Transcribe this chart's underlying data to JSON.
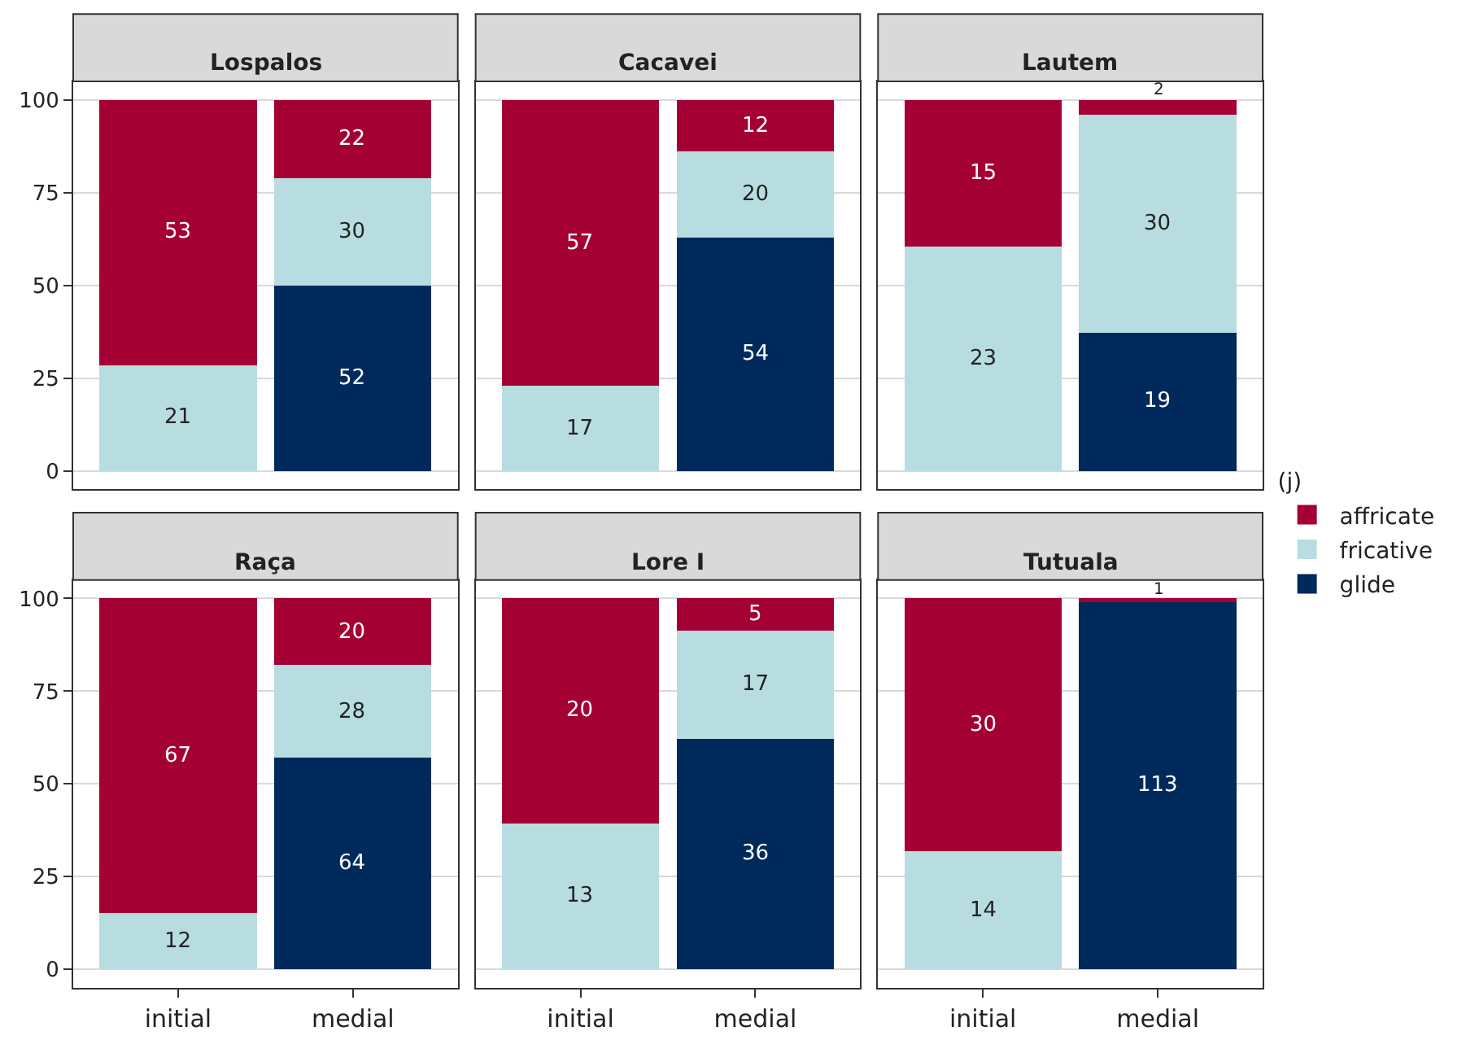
{
  "chart_data": [
    {
      "type": "bar",
      "title": "Lospalos",
      "categories": [
        "initial",
        "medial"
      ],
      "stacked": true,
      "ylim": [
        -5,
        105
      ],
      "yticks": [
        0,
        25,
        50,
        75,
        100
      ],
      "grid": "y",
      "tick_labels": "y",
      "legend": "right",
      "legend_title": "(j)",
      "series": [
        {
          "name": "glide",
          "color": "#002a5c",
          "values": [
            null,
            50.0
          ]
        },
        {
          "name": "fricative",
          "color": "#b8dde1",
          "values": [
            28.4,
            28.8
          ]
        },
        {
          "name": "affricate",
          "color": "#a50034",
          "values": [
            71.6,
            21.2
          ]
        }
      ],
      "annotations": [
        "21",
        "53",
        "52",
        "30",
        "22"
      ]
    },
    {
      "type": "bar",
      "title": "Cacavei",
      "categories": [
        "initial",
        "medial"
      ],
      "stacked": true,
      "ylim": [
        -5,
        105
      ],
      "yticks": [
        0,
        25,
        50,
        75,
        100
      ],
      "grid": "y",
      "tick_labels": false,
      "series": [
        {
          "name": "glide",
          "color": "#002a5c",
          "values": [
            null,
            62.8
          ]
        },
        {
          "name": "fricative",
          "color": "#b8dde1",
          "values": [
            23.0,
            23.3
          ]
        },
        {
          "name": "affricate",
          "color": "#a50034",
          "values": [
            77.0,
            13.9
          ]
        }
      ],
      "annotations": [
        "17",
        "57",
        "54",
        "20",
        "12"
      ]
    },
    {
      "type": "bar",
      "title": "Lautem",
      "categories": [
        "initial",
        "medial"
      ],
      "stacked": true,
      "ylim": [
        -5,
        105
      ],
      "yticks": [
        0,
        25,
        50,
        75,
        100
      ],
      "grid": "y",
      "tick_labels": false,
      "series": [
        {
          "name": "glide",
          "color": "#002a5c",
          "values": [
            null,
            37.3
          ]
        },
        {
          "name": "fricative",
          "color": "#b8dde1",
          "values": [
            60.5,
            58.8
          ]
        },
        {
          "name": "affricate",
          "color": "#a50034",
          "values": [
            39.5,
            3.9
          ]
        }
      ],
      "annotations": [
        "23",
        "15",
        "19",
        "30",
        "2"
      ]
    },
    {
      "type": "bar",
      "title": "Raça",
      "categories": [
        "initial",
        "medial"
      ],
      "stacked": true,
      "ylim": [
        -5,
        105
      ],
      "yticks": [
        0,
        25,
        50,
        75,
        100
      ],
      "grid": "y",
      "series": [
        {
          "name": "glide",
          "color": "#002a5c",
          "values": [
            null,
            57.1
          ]
        },
        {
          "name": "fricative",
          "color": "#b8dde1",
          "values": [
            15.2,
            25.0
          ]
        },
        {
          "name": "affricate",
          "color": "#a50034",
          "values": [
            84.8,
            17.9
          ]
        }
      ],
      "annotations": [
        "12",
        "67",
        "64",
        "28",
        "20"
      ]
    },
    {
      "type": "bar",
      "title": "Lore I",
      "categories": [
        "initial",
        "medial"
      ],
      "stacked": true,
      "ylim": [
        -5,
        105
      ],
      "yticks": [
        0,
        25,
        50,
        75,
        100
      ],
      "grid": "y",
      "tick_labels": "x",
      "series": [
        {
          "name": "glide",
          "color": "#002a5c",
          "values": [
            null,
            62.1
          ]
        },
        {
          "name": "fricative",
          "color": "#b8dde1",
          "values": [
            39.4,
            29.3
          ]
        },
        {
          "name": "affricate",
          "color": "#a50034",
          "values": [
            60.6,
            8.6
          ]
        }
      ],
      "annotations": [
        "13",
        "20",
        "36",
        "17",
        "5"
      ]
    },
    {
      "type": "bar",
      "title": "Tutuala",
      "categories": [
        "initial",
        "medial"
      ],
      "stacked": true,
      "ylim": [
        -5,
        105
      ],
      "yticks": [
        0,
        25,
        50,
        75,
        100
      ],
      "grid": "y",
      "tick_labels": "x",
      "series": [
        {
          "name": "glide",
          "color": "#002a5c",
          "values": [
            null,
            99.1
          ]
        },
        {
          "name": "fricative",
          "color": "#b8dde1",
          "values": [
            31.8,
            null
          ]
        },
        {
          "name": "affricate",
          "color": "#a50034",
          "values": [
            68.2,
            0.9
          ]
        }
      ],
      "annotations": [
        "14",
        "30",
        "113",
        "1"
      ]
    }
  ]
}
